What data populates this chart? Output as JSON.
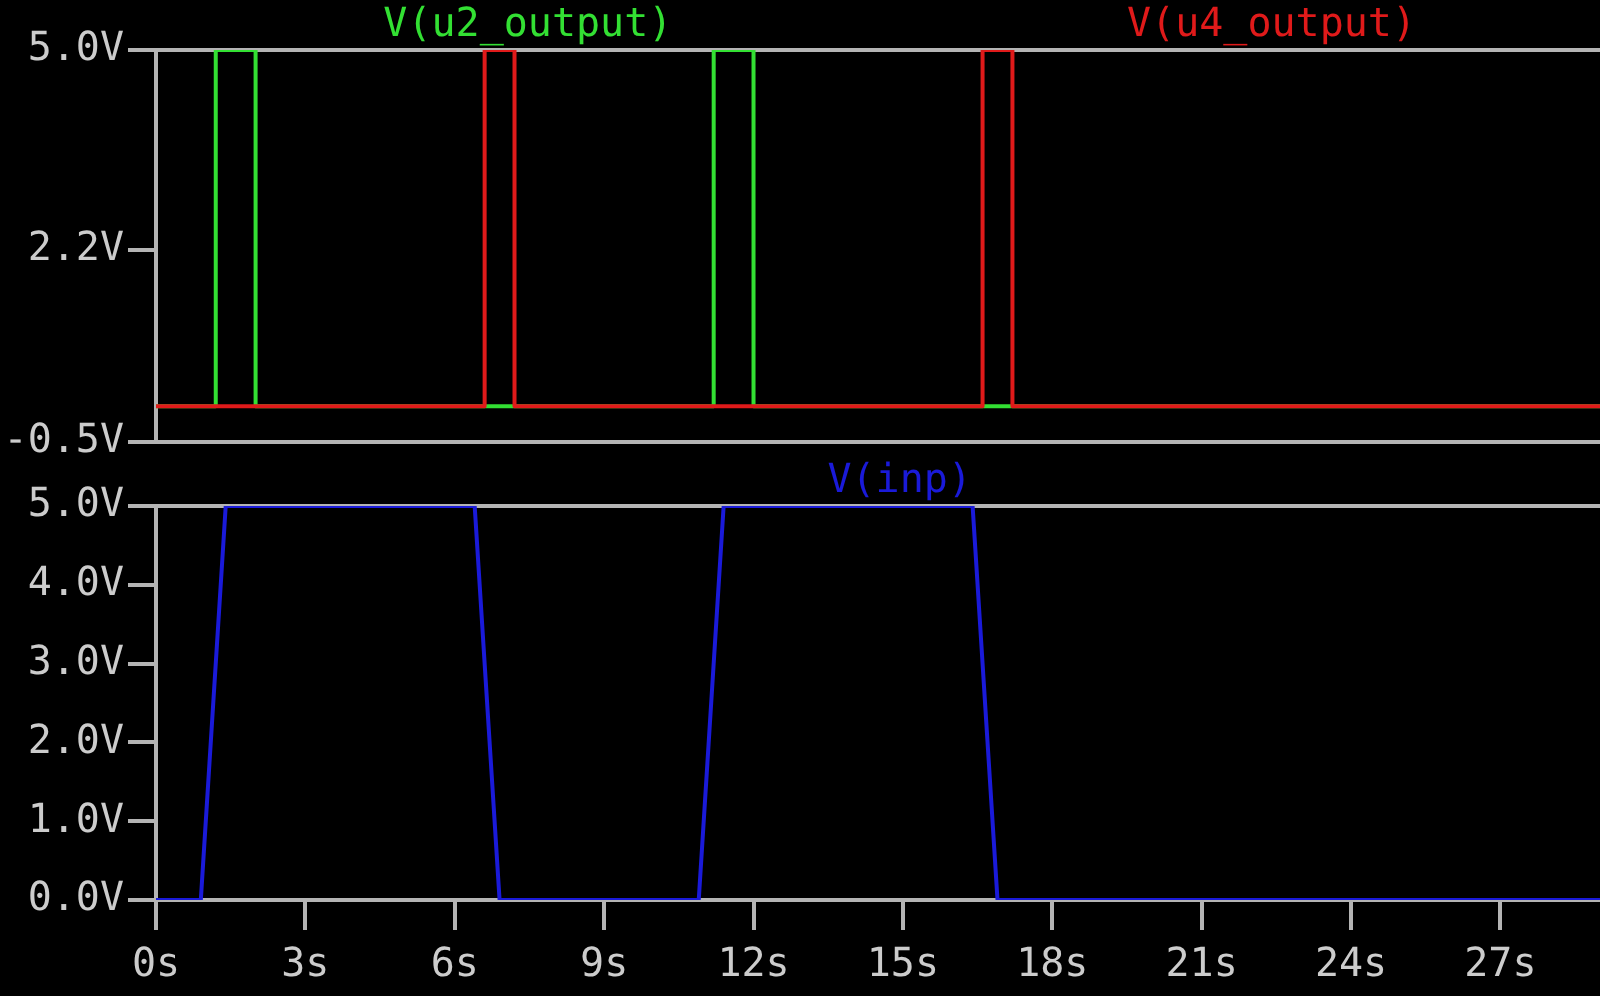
{
  "chart_data": [
    {
      "type": "line",
      "legend": "top",
      "tick_labels": "y",
      "xlim": [
        0,
        29
      ],
      "ylim": [
        -0.5,
        5
      ],
      "yticks": [
        {
          "value": -0.5,
          "label": "-0.5V"
        },
        {
          "value": 2.2,
          "label": "2.2V"
        },
        {
          "value": 5,
          "label": "5.0V"
        }
      ],
      "series": [
        {
          "name": "V(u2_output)",
          "color": "#33e033",
          "x": [
            0,
            1.2,
            1.2,
            2,
            2,
            11.2,
            11.2,
            12,
            12,
            29
          ],
          "values": [
            0,
            0,
            5,
            5,
            0,
            0,
            5,
            5,
            0,
            0
          ]
        },
        {
          "name": "V(u4_output)",
          "color": "#e01a1a",
          "x": [
            0,
            6.6,
            6.6,
            7.2,
            7.2,
            16.6,
            16.6,
            17.2,
            17.2,
            29
          ],
          "values": [
            0,
            0,
            5,
            5,
            0,
            0,
            5,
            5,
            0,
            0
          ]
        }
      ]
    },
    {
      "type": "line",
      "legend": "top",
      "xlim": [
        0,
        29
      ],
      "xticks": [
        {
          "value": 0,
          "label": "0s"
        },
        {
          "value": 3,
          "label": "3s"
        },
        {
          "value": 6,
          "label": "6s"
        },
        {
          "value": 9,
          "label": "9s"
        },
        {
          "value": 12,
          "label": "12s"
        },
        {
          "value": 15,
          "label": "15s"
        },
        {
          "value": 18,
          "label": "18s"
        },
        {
          "value": 21,
          "label": "21s"
        },
        {
          "value": 24,
          "label": "24s"
        },
        {
          "value": 27,
          "label": "27s"
        }
      ],
      "ylim": [
        0,
        5
      ],
      "yticks": [
        {
          "value": 0,
          "label": "0.0V"
        },
        {
          "value": 1,
          "label": "1.0V"
        },
        {
          "value": 2,
          "label": "2.0V"
        },
        {
          "value": 3,
          "label": "3.0V"
        },
        {
          "value": 4,
          "label": "4.0V"
        },
        {
          "value": 5,
          "label": "5.0V"
        }
      ],
      "series": [
        {
          "name": "V(inp)",
          "color": "#1a1ad9",
          "x": [
            0,
            0.9,
            1.4,
            6.4,
            6.9,
            10.9,
            11.4,
            16.4,
            16.9,
            29
          ],
          "values": [
            0,
            0,
            5,
            5,
            0,
            0,
            5,
            5,
            0,
            0
          ]
        }
      ]
    }
  ]
}
